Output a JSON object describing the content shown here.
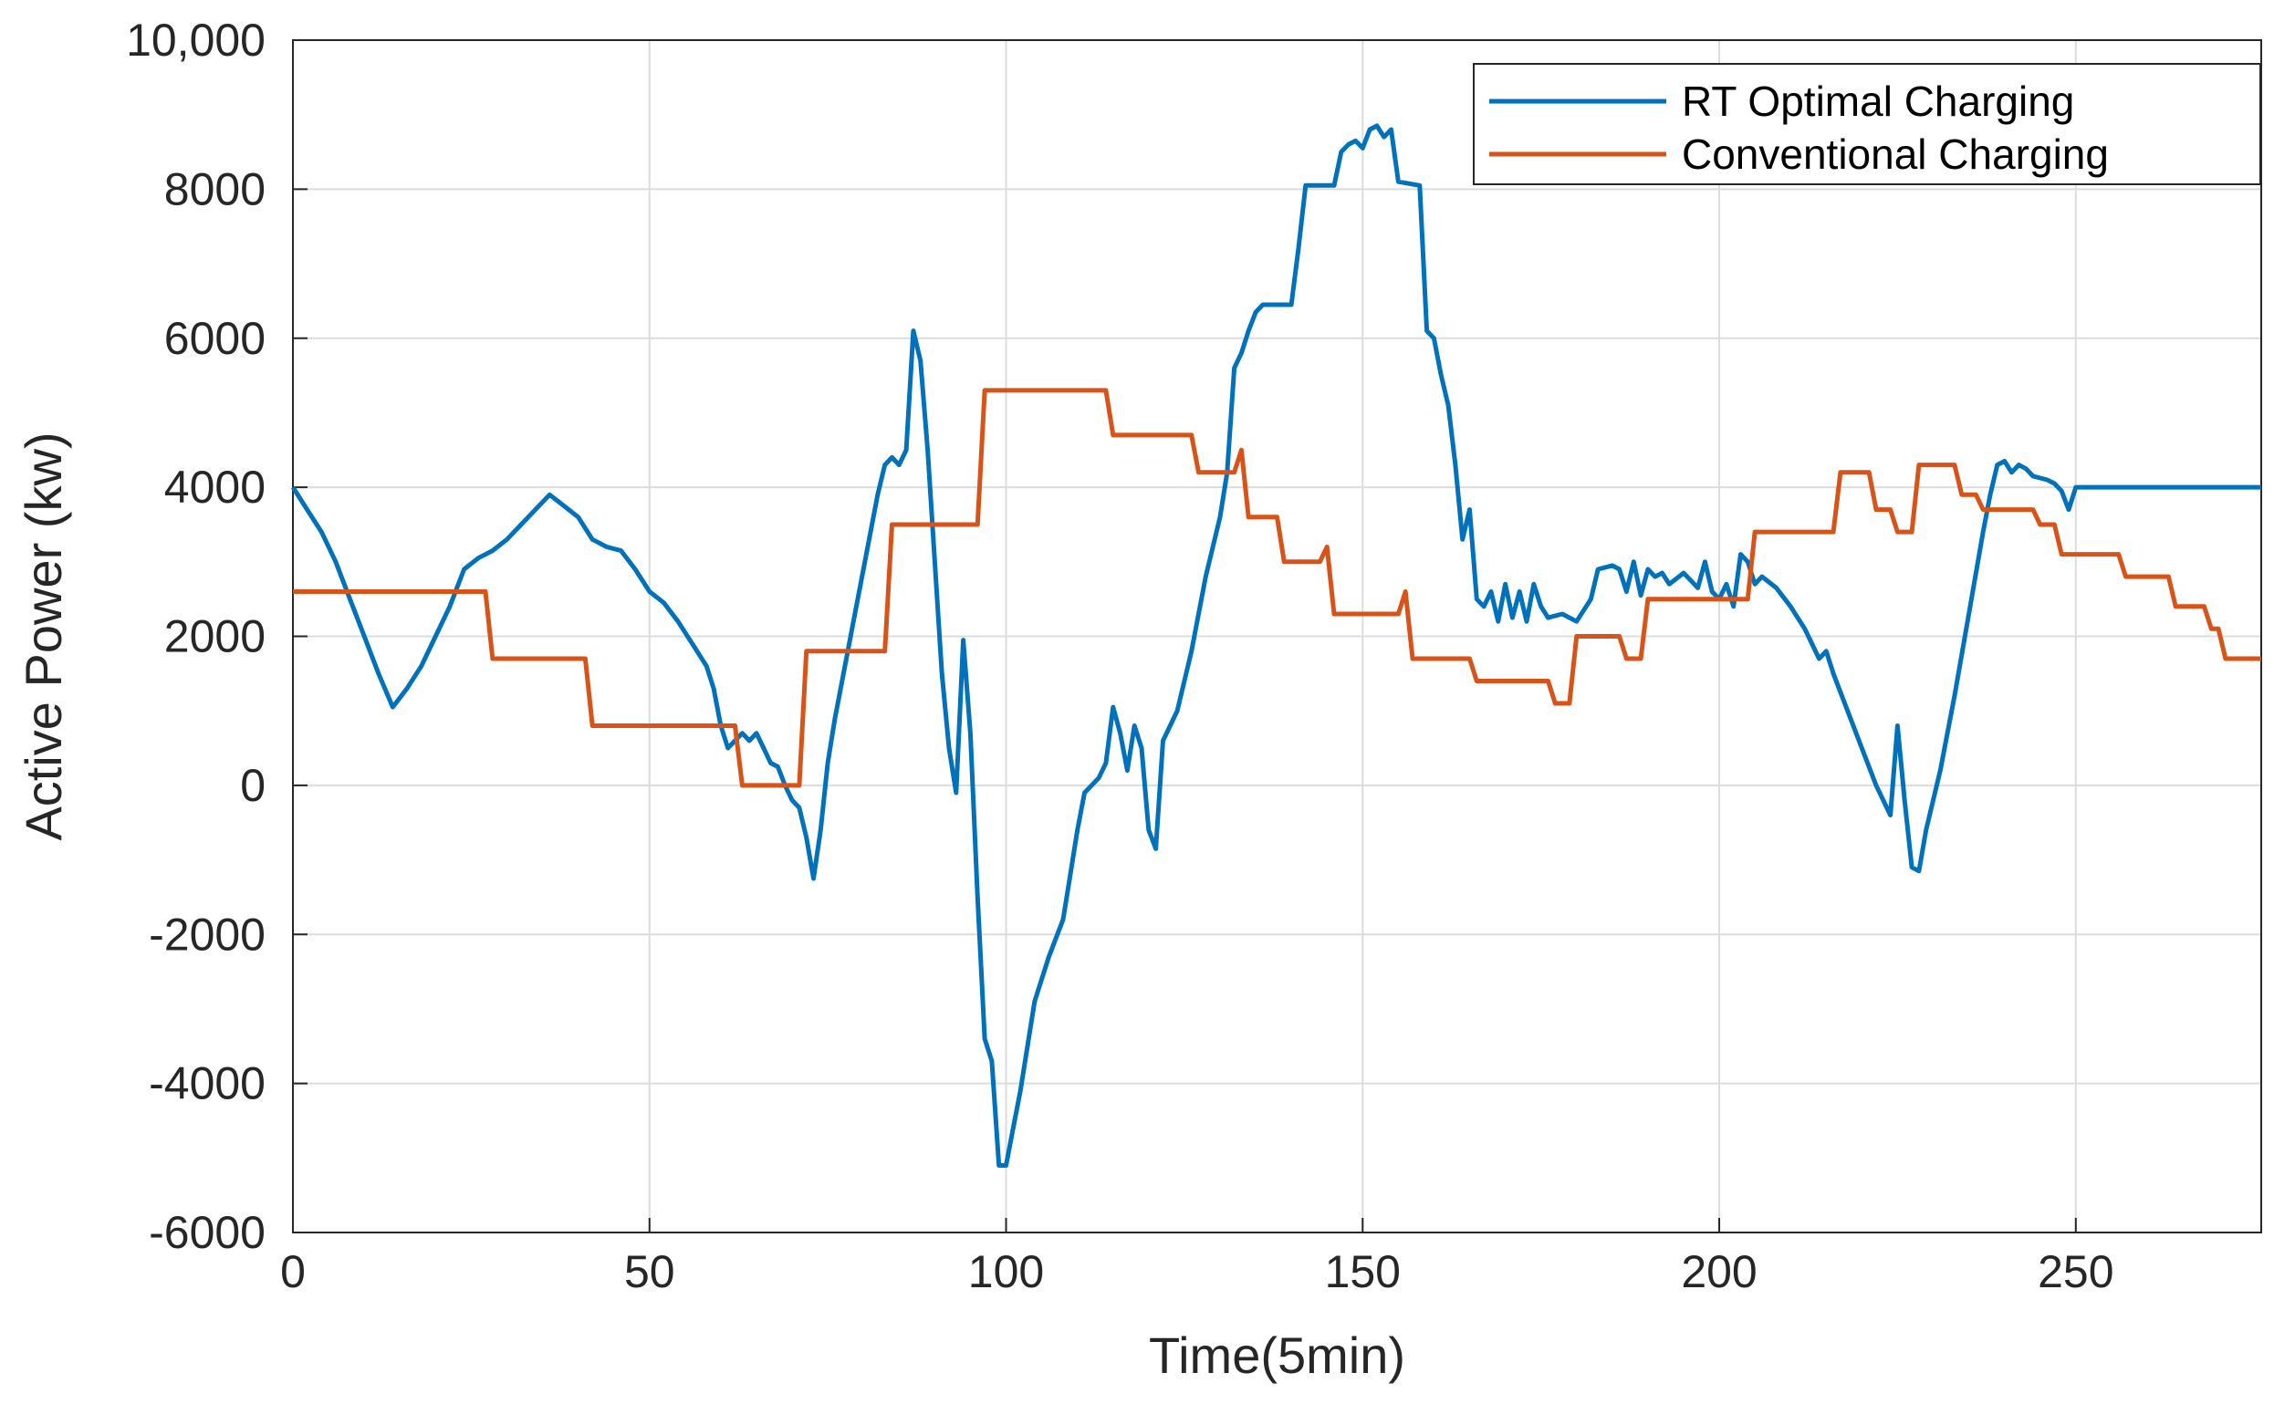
{
  "chart_data": {
    "type": "line",
    "xlabel": "Time(5min)",
    "ylabel": "Active Power (kw)",
    "xlim": [
      0,
      276
    ],
    "ylim": [
      -6000,
      10000
    ],
    "xticks": [
      0,
      50,
      100,
      150,
      200,
      250
    ],
    "xtick_labels": [
      "0",
      "50",
      "100",
      "150",
      "200",
      "250"
    ],
    "yticks": [
      -6000,
      -4000,
      -2000,
      0,
      2000,
      4000,
      6000,
      8000,
      10000
    ],
    "ytick_labels": [
      "-6000",
      "-4000",
      "-2000",
      "0",
      "2000",
      "4000",
      "6000",
      "8000",
      "10,000"
    ],
    "grid": true,
    "legend_position": "top-right",
    "series": [
      {
        "name": "RT Optimal Charging",
        "color": "#0072BD",
        "points": [
          [
            0,
            4000
          ],
          [
            2,
            3700
          ],
          [
            4,
            3400
          ],
          [
            6,
            3000
          ],
          [
            8,
            2500
          ],
          [
            10,
            2000
          ],
          [
            12,
            1500
          ],
          [
            14,
            1050
          ],
          [
            16,
            1300
          ],
          [
            18,
            1600
          ],
          [
            20,
            2000
          ],
          [
            22,
            2400
          ],
          [
            24,
            2900
          ],
          [
            26,
            3050
          ],
          [
            28,
            3150
          ],
          [
            30,
            3300
          ],
          [
            32,
            3500
          ],
          [
            34,
            3700
          ],
          [
            36,
            3900
          ],
          [
            38,
            3750
          ],
          [
            40,
            3600
          ],
          [
            42,
            3300
          ],
          [
            44,
            3200
          ],
          [
            46,
            3150
          ],
          [
            48,
            2900
          ],
          [
            50,
            2600
          ],
          [
            52,
            2450
          ],
          [
            54,
            2200
          ],
          [
            56,
            1900
          ],
          [
            58,
            1600
          ],
          [
            59,
            1300
          ],
          [
            60,
            800
          ],
          [
            61,
            500
          ],
          [
            62,
            600
          ],
          [
            63,
            700
          ],
          [
            64,
            600
          ],
          [
            65,
            700
          ],
          [
            66,
            500
          ],
          [
            67,
            300
          ],
          [
            68,
            250
          ],
          [
            69,
            0
          ],
          [
            70,
            -200
          ],
          [
            71,
            -300
          ],
          [
            72,
            -700
          ],
          [
            73,
            -1250
          ],
          [
            74,
            -600
          ],
          [
            75,
            300
          ],
          [
            76,
            900
          ],
          [
            78,
            1900
          ],
          [
            80,
            2900
          ],
          [
            82,
            3900
          ],
          [
            83,
            4300
          ],
          [
            84,
            4400
          ],
          [
            85,
            4300
          ],
          [
            86,
            4500
          ],
          [
            87,
            6100
          ],
          [
            88,
            5700
          ],
          [
            89,
            4500
          ],
          [
            90,
            3000
          ],
          [
            91,
            1500
          ],
          [
            92,
            500
          ],
          [
            93,
            -100
          ],
          [
            94,
            1950
          ],
          [
            95,
            700
          ],
          [
            96,
            -1500
          ],
          [
            97,
            -3400
          ],
          [
            98,
            -3700
          ],
          [
            99,
            -5100
          ],
          [
            100,
            -5100
          ],
          [
            101,
            -4600
          ],
          [
            102,
            -4100
          ],
          [
            103,
            -3500
          ],
          [
            104,
            -2900
          ],
          [
            106,
            -2300
          ],
          [
            108,
            -1800
          ],
          [
            109,
            -1200
          ],
          [
            110,
            -600
          ],
          [
            111,
            -100
          ],
          [
            112,
            0
          ],
          [
            113,
            100
          ],
          [
            114,
            300
          ],
          [
            115,
            1050
          ],
          [
            116,
            700
          ],
          [
            117,
            200
          ],
          [
            118,
            800
          ],
          [
            119,
            500
          ],
          [
            120,
            -600
          ],
          [
            121,
            -850
          ],
          [
            122,
            600
          ],
          [
            124,
            1000
          ],
          [
            126,
            1800
          ],
          [
            128,
            2800
          ],
          [
            130,
            3600
          ],
          [
            131,
            4200
          ],
          [
            132,
            5600
          ],
          [
            133,
            5800
          ],
          [
            134,
            6100
          ],
          [
            135,
            6350
          ],
          [
            136,
            6450
          ],
          [
            140,
            6450
          ],
          [
            141,
            7200
          ],
          [
            142,
            8050
          ],
          [
            146,
            8050
          ],
          [
            147,
            8500
          ],
          [
            148,
            8600
          ],
          [
            149,
            8650
          ],
          [
            150,
            8550
          ],
          [
            151,
            8800
          ],
          [
            152,
            8850
          ],
          [
            153,
            8700
          ],
          [
            154,
            8800
          ],
          [
            155,
            8100
          ],
          [
            158,
            8050
          ],
          [
            159,
            6100
          ],
          [
            160,
            6000
          ],
          [
            161,
            5500
          ],
          [
            162,
            5100
          ],
          [
            163,
            4300
          ],
          [
            164,
            3300
          ],
          [
            165,
            3700
          ],
          [
            166,
            2500
          ],
          [
            167,
            2400
          ],
          [
            168,
            2600
          ],
          [
            169,
            2200
          ],
          [
            170,
            2700
          ],
          [
            171,
            2250
          ],
          [
            172,
            2600
          ],
          [
            173,
            2200
          ],
          [
            174,
            2700
          ],
          [
            175,
            2400
          ],
          [
            176,
            2250
          ],
          [
            178,
            2300
          ],
          [
            180,
            2200
          ],
          [
            182,
            2500
          ],
          [
            183,
            2900
          ],
          [
            185,
            2950
          ],
          [
            186,
            2900
          ],
          [
            187,
            2600
          ],
          [
            188,
            3000
          ],
          [
            189,
            2550
          ],
          [
            190,
            2900
          ],
          [
            191,
            2800
          ],
          [
            192,
            2850
          ],
          [
            193,
            2700
          ],
          [
            195,
            2850
          ],
          [
            196,
            2750
          ],
          [
            197,
            2650
          ],
          [
            198,
            3000
          ],
          [
            199,
            2600
          ],
          [
            200,
            2500
          ],
          [
            201,
            2700
          ],
          [
            202,
            2400
          ],
          [
            203,
            3100
          ],
          [
            204,
            3000
          ],
          [
            205,
            2700
          ],
          [
            206,
            2800
          ],
          [
            208,
            2650
          ],
          [
            210,
            2400
          ],
          [
            212,
            2100
          ],
          [
            214,
            1700
          ],
          [
            215,
            1800
          ],
          [
            216,
            1500
          ],
          [
            218,
            1000
          ],
          [
            220,
            500
          ],
          [
            222,
            0
          ],
          [
            224,
            -400
          ],
          [
            225,
            800
          ],
          [
            226,
            -200
          ],
          [
            227,
            -1100
          ],
          [
            228,
            -1150
          ],
          [
            229,
            -600
          ],
          [
            231,
            200
          ],
          [
            233,
            1200
          ],
          [
            235,
            2300
          ],
          [
            237,
            3400
          ],
          [
            238,
            3900
          ],
          [
            239,
            4300
          ],
          [
            240,
            4350
          ],
          [
            241,
            4200
          ],
          [
            242,
            4300
          ],
          [
            243,
            4250
          ],
          [
            244,
            4150
          ],
          [
            246,
            4100
          ],
          [
            247,
            4050
          ],
          [
            248,
            3950
          ],
          [
            249,
            3700
          ],
          [
            250,
            4000
          ],
          [
            276,
            4000
          ]
        ]
      },
      {
        "name": "Conventional Charging",
        "color": "#D95319",
        "points": [
          [
            0,
            2600
          ],
          [
            27,
            2600
          ],
          [
            28,
            1700
          ],
          [
            41,
            1700
          ],
          [
            42,
            800
          ],
          [
            62,
            800
          ],
          [
            63,
            0
          ],
          [
            71,
            0
          ],
          [
            72,
            1800
          ],
          [
            83,
            1800
          ],
          [
            84,
            3500
          ],
          [
            96,
            3500
          ],
          [
            97,
            5300
          ],
          [
            114,
            5300
          ],
          [
            115,
            4700
          ],
          [
            126,
            4700
          ],
          [
            127,
            4200
          ],
          [
            132,
            4200
          ],
          [
            133,
            4500
          ],
          [
            134,
            3600
          ],
          [
            138,
            3600
          ],
          [
            139,
            3000
          ],
          [
            144,
            3000
          ],
          [
            145,
            3200
          ],
          [
            146,
            2300
          ],
          [
            155,
            2300
          ],
          [
            156,
            2600
          ],
          [
            157,
            1700
          ],
          [
            165,
            1700
          ],
          [
            166,
            1400
          ],
          [
            176,
            1400
          ],
          [
            177,
            1100
          ],
          [
            179,
            1100
          ],
          [
            180,
            2000
          ],
          [
            186,
            2000
          ],
          [
            187,
            1700
          ],
          [
            189,
            1700
          ],
          [
            190,
            2500
          ],
          [
            204,
            2500
          ],
          [
            205,
            3400
          ],
          [
            216,
            3400
          ],
          [
            217,
            4200
          ],
          [
            221,
            4200
          ],
          [
            222,
            3700
          ],
          [
            224,
            3700
          ],
          [
            225,
            3400
          ],
          [
            227,
            3400
          ],
          [
            228,
            4300
          ],
          [
            233,
            4300
          ],
          [
            234,
            3900
          ],
          [
            236,
            3900
          ],
          [
            237,
            3700
          ],
          [
            244,
            3700
          ],
          [
            245,
            3500
          ],
          [
            247,
            3500
          ],
          [
            248,
            3100
          ],
          [
            256,
            3100
          ],
          [
            257,
            2800
          ],
          [
            263,
            2800
          ],
          [
            264,
            2400
          ],
          [
            268,
            2400
          ],
          [
            269,
            2100
          ],
          [
            270,
            2100
          ],
          [
            271,
            1700
          ],
          [
            276,
            1700
          ]
        ]
      }
    ]
  }
}
